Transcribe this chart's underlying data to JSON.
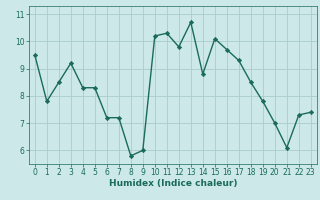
{
  "xlabel": "Humidex (Indice chaleur)",
  "ylabel": "",
  "x": [
    0,
    1,
    2,
    3,
    4,
    5,
    6,
    7,
    8,
    9,
    10,
    11,
    12,
    13,
    14,
    15,
    16,
    17,
    18,
    19,
    20,
    21,
    22,
    23
  ],
  "y": [
    9.5,
    7.8,
    8.5,
    9.2,
    8.3,
    8.3,
    7.2,
    7.2,
    5.8,
    6.0,
    10.2,
    10.3,
    9.8,
    10.7,
    8.8,
    10.1,
    9.7,
    9.3,
    8.5,
    7.8,
    7.0,
    6.1,
    7.3,
    7.4
  ],
  "line_color": "#1a6b5a",
  "marker": "D",
  "markersize": 2.2,
  "linewidth": 1.0,
  "background_color": "#cce8e8",
  "grid_color": "#aacccc",
  "ylim": [
    5.5,
    11.3
  ],
  "yticks": [
    6,
    7,
    8,
    9,
    10,
    11
  ],
  "xlim": [
    -0.5,
    23.5
  ],
  "xticks": [
    0,
    1,
    2,
    3,
    4,
    5,
    6,
    7,
    8,
    9,
    10,
    11,
    12,
    13,
    14,
    15,
    16,
    17,
    18,
    19,
    20,
    21,
    22,
    23
  ],
  "tick_fontsize": 5.5,
  "label_fontsize": 6.5,
  "tick_color": "#1a6b5a",
  "label_color": "#1a6b5a"
}
